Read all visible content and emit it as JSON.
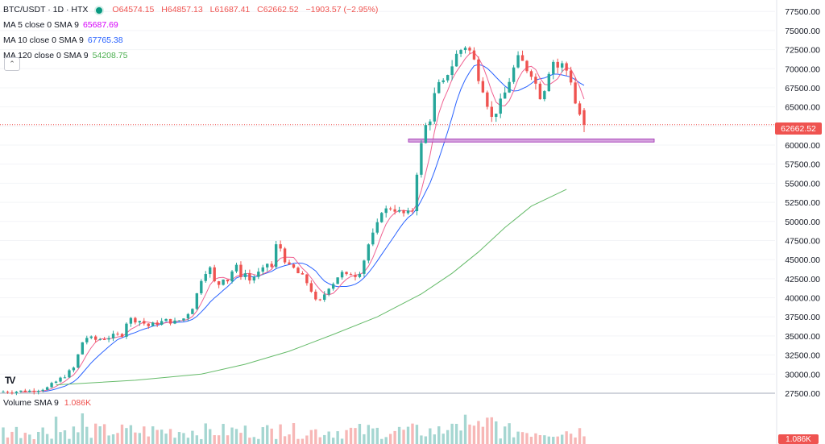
{
  "header": {
    "symbol": "BTC/USDT · 1D · HTX",
    "ohlc": {
      "open": "O64574.15",
      "high": "H64857.13",
      "low": "L61687.41",
      "close": "C62662.52",
      "change": "−1903.57 (−2.95%)"
    }
  },
  "ma_indicators": [
    {
      "label": "MA 5 close 0 SMA 9",
      "value": "65687.69",
      "color": "#d500f9"
    },
    {
      "label": "MA 10 close 0 SMA 9",
      "value": "67765.38",
      "color": "#2962ff"
    },
    {
      "label": "MA 120 close 0 SMA 9",
      "value": "54208.75",
      "color": "#4caf50"
    }
  ],
  "volume": {
    "label": "Volume SMA 9",
    "value": "1.086K",
    "tag": "1.086K"
  },
  "last_price_tag": "62662.52",
  "colors": {
    "up": "#26a69a",
    "down": "#ef5350",
    "support_zone": "#ce93d8",
    "ma5": "#f06292",
    "ma10": "#2962ff",
    "ma120": "#66bb6a"
  },
  "chart_data": {
    "type": "candlestick",
    "y_ticks": [
      "77500.00",
      "75000.00",
      "72500.00",
      "70000.00",
      "67500.00",
      "65000.00",
      "62500.00",
      "60000.00",
      "57500.00",
      "55000.00",
      "52500.00",
      "50000.00",
      "47500.00",
      "45000.00",
      "42500.00",
      "40000.00",
      "37500.00",
      "35000.00",
      "32500.00",
      "30000.00",
      "27500.00"
    ],
    "y_range": [
      27500,
      79000
    ],
    "last_price": 62662.52,
    "support_zone": {
      "low": 60400,
      "high": 60800
    },
    "close_path": [
      [
        0,
        27700
      ],
      [
        6,
        27800
      ],
      [
        10,
        28200
      ],
      [
        12,
        29000
      ],
      [
        14,
        29800
      ],
      [
        16,
        30800
      ],
      [
        17,
        32500
      ],
      [
        18,
        34200
      ],
      [
        19,
        34800
      ],
      [
        21,
        34500
      ],
      [
        23,
        34700
      ],
      [
        25,
        35000
      ],
      [
        27,
        35200
      ],
      [
        28,
        36800
      ],
      [
        29,
        37200
      ],
      [
        31,
        37000
      ],
      [
        33,
        36300
      ],
      [
        35,
        36700
      ],
      [
        37,
        37000
      ],
      [
        39,
        36800
      ],
      [
        41,
        37300
      ],
      [
        43,
        38800
      ],
      [
        44,
        40500
      ],
      [
        45,
        42500
      ],
      [
        46,
        43500
      ],
      [
        47,
        43800
      ],
      [
        48,
        42000
      ],
      [
        49,
        41800
      ],
      [
        50,
        42700
      ],
      [
        51,
        42300
      ],
      [
        52,
        43500
      ],
      [
        53,
        44000
      ],
      [
        54,
        43000
      ],
      [
        55,
        43200
      ],
      [
        56,
        42300
      ],
      [
        57,
        42800
      ],
      [
        59,
        43600
      ],
      [
        60,
        44500
      ],
      [
        61,
        44000
      ],
      [
        62,
        46800
      ],
      [
        63,
        46500
      ],
      [
        64,
        45000
      ],
      [
        65,
        44000
      ],
      [
        66,
        43800
      ],
      [
        67,
        43200
      ],
      [
        68,
        42700
      ],
      [
        69,
        42000
      ],
      [
        70,
        41000
      ],
      [
        71,
        39500
      ],
      [
        72,
        39500
      ],
      [
        73,
        40500
      ],
      [
        74,
        41500
      ],
      [
        75,
        42000
      ],
      [
        76,
        42800
      ],
      [
        77,
        43200
      ],
      [
        78,
        42800
      ],
      [
        79,
        43200
      ],
      [
        80,
        43000
      ],
      [
        81,
        43500
      ],
      [
        82,
        45000
      ],
      [
        83,
        47000
      ],
      [
        84,
        48200
      ],
      [
        85,
        49500
      ],
      [
        86,
        51500
      ],
      [
        87,
        51500
      ],
      [
        88,
        51800
      ],
      [
        89,
        51600
      ],
      [
        90,
        51200
      ],
      [
        91,
        51000
      ],
      [
        92,
        51000
      ],
      [
        93,
        51500
      ],
      [
        94,
        56500
      ],
      [
        95,
        60000
      ],
      [
        96,
        62500
      ],
      [
        97,
        63500
      ],
      [
        98,
        66500
      ],
      [
        99,
        67800
      ],
      [
        100,
        68000
      ],
      [
        101,
        69500
      ],
      [
        102,
        70500
      ],
      [
        103,
        71800
      ],
      [
        104,
        72500
      ],
      [
        105,
        73000
      ],
      [
        106,
        72300
      ],
      [
        107,
        71000
      ],
      [
        108,
        69000
      ],
      [
        109,
        67500
      ],
      [
        110,
        65500
      ],
      [
        111,
        63500
      ],
      [
        112,
        64500
      ],
      [
        113,
        65500
      ],
      [
        114,
        66800
      ],
      [
        115,
        68500
      ],
      [
        116,
        70000
      ],
      [
        117,
        71200
      ],
      [
        118,
        70800
      ],
      [
        119,
        70000
      ],
      [
        120,
        69500
      ],
      [
        121,
        68000
      ],
      [
        122,
        66500
      ],
      [
        123,
        67500
      ],
      [
        124,
        69800
      ],
      [
        125,
        71000
      ],
      [
        126,
        70200
      ],
      [
        127,
        70500
      ],
      [
        128,
        69800
      ],
      [
        129,
        68500
      ],
      [
        130,
        65500
      ],
      [
        131,
        64000
      ],
      [
        132,
        62662
      ]
    ],
    "ma120_path": [
      [
        12,
        28600
      ],
      [
        30,
        29200
      ],
      [
        45,
        30000
      ],
      [
        55,
        31300
      ],
      [
        65,
        33000
      ],
      [
        75,
        35200
      ],
      [
        85,
        37500
      ],
      [
        95,
        40500
      ],
      [
        102,
        43200
      ],
      [
        108,
        46000
      ],
      [
        114,
        49200
      ],
      [
        120,
        52000
      ],
      [
        128,
        54208
      ]
    ]
  }
}
